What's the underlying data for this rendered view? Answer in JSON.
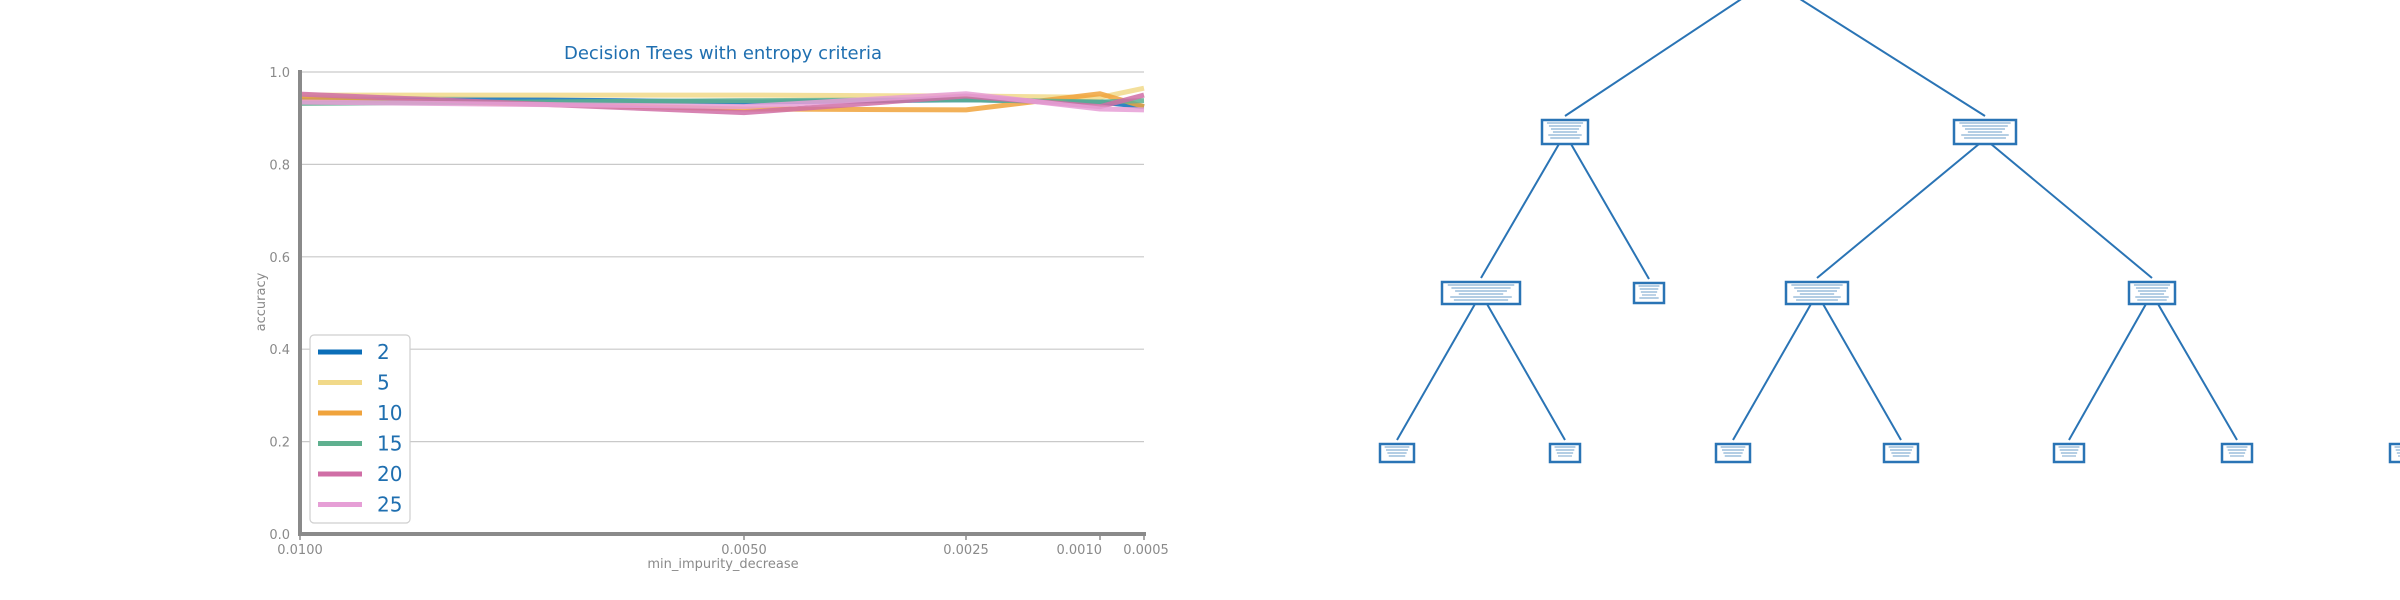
{
  "chart_data": [
    {
      "type": "line",
      "title": "Decision Trees with entropy criteria",
      "xlabel": "min_impurity_decrease",
      "ylabel": "accuracy",
      "x_scale": "reversed",
      "xlim": [
        0.01,
        0.0005
      ],
      "ylim": [
        0.0,
        1.0
      ],
      "xticks": [
        {
          "value": 0.01,
          "label": "0.0100"
        },
        {
          "value": 0.005,
          "label": "0.0050"
        },
        {
          "value": 0.0025,
          "label": "0.0025"
        },
        {
          "value": 0.001,
          "label": "0.0010"
        },
        {
          "value": 0.0005,
          "label": "0.0005"
        }
      ],
      "yticks": [
        {
          "value": 0.0,
          "label": "0.0"
        },
        {
          "value": 0.2,
          "label": "0.2"
        },
        {
          "value": 0.4,
          "label": "0.4"
        },
        {
          "value": 0.6,
          "label": "0.6"
        },
        {
          "value": 0.8,
          "label": "0.8"
        },
        {
          "value": 1.0,
          "label": "1.0"
        }
      ],
      "grid": "horizontal",
      "legend_position": "lower-left",
      "x": [
        0.01,
        0.005,
        0.0025,
        0.001,
        0.0005
      ],
      "series": [
        {
          "name": "2",
          "color": "#0b6eb8",
          "values": [
            0.945,
            0.935,
            0.94,
            0.935,
            0.925
          ]
        },
        {
          "name": "5",
          "color": "#f1d989",
          "values": [
            0.95,
            0.95,
            0.948,
            0.945,
            0.965
          ]
        },
        {
          "name": "10",
          "color": "#f0a33c",
          "values": [
            0.942,
            0.92,
            0.918,
            0.953,
            0.925
          ]
        },
        {
          "name": "15",
          "color": "#5fb08f",
          "values": [
            0.932,
            0.938,
            0.94,
            0.935,
            0.938
          ]
        },
        {
          "name": "20",
          "color": "#d06ea6",
          "values": [
            0.952,
            0.912,
            0.948,
            0.925,
            0.95
          ]
        },
        {
          "name": "25",
          "color": "#e69fd6",
          "values": [
            0.935,
            0.925,
            0.953,
            0.92,
            0.918
          ]
        }
      ]
    },
    {
      "type": "tree",
      "nodes": [
        {
          "id": "n1"
        },
        {
          "id": "n2"
        },
        {
          "id": "n3"
        },
        {
          "id": "n4"
        },
        {
          "id": "n5"
        },
        {
          "id": "n6"
        },
        {
          "id": "n7"
        },
        {
          "id": "n8"
        },
        {
          "id": "n9"
        },
        {
          "id": "n10"
        },
        {
          "id": "n11"
        },
        {
          "id": "n12"
        },
        {
          "id": "n13"
        },
        {
          "id": "n14"
        },
        {
          "id": "n15"
        }
      ],
      "edges": [
        [
          "root",
          "n1"
        ],
        [
          "root",
          "n2"
        ],
        [
          "n1",
          "n3"
        ],
        [
          "n1",
          "n4"
        ],
        [
          "n2",
          "n5"
        ],
        [
          "n2",
          "n6"
        ],
        [
          "n3",
          "n7"
        ],
        [
          "n3",
          "n8"
        ],
        [
          "n5",
          "n9"
        ],
        [
          "n5",
          "n10"
        ],
        [
          "n6",
          "n11"
        ],
        [
          "n6",
          "n12"
        ]
      ]
    }
  ]
}
